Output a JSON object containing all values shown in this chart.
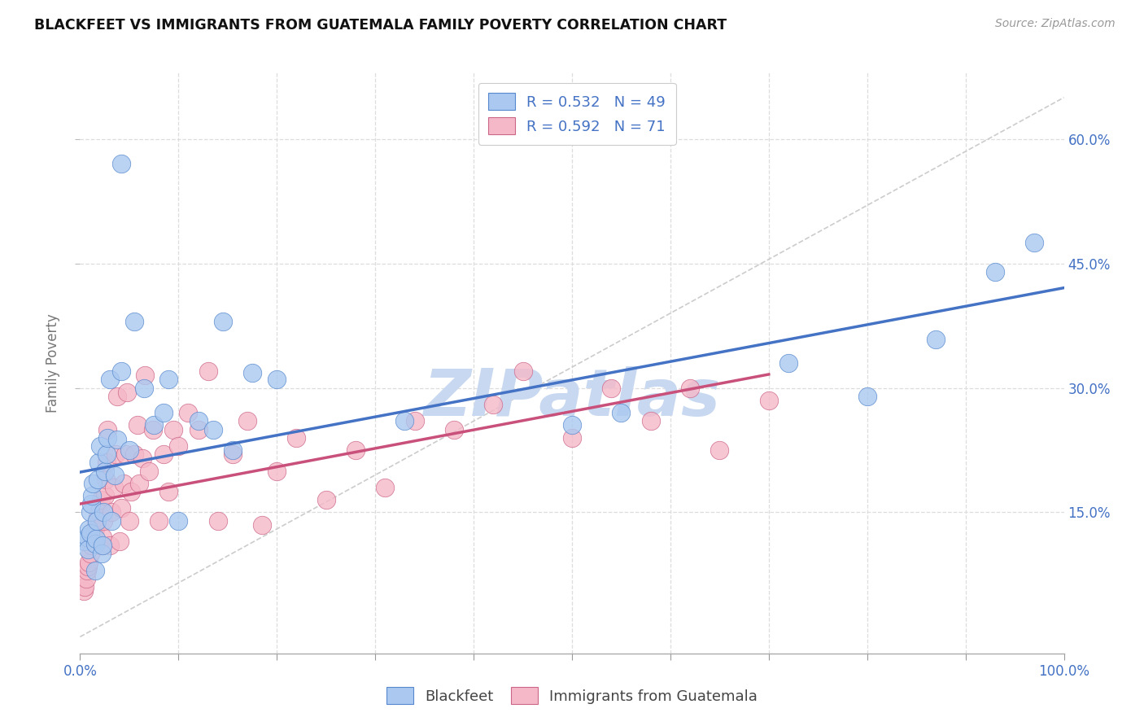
{
  "title": "BLACKFEET VS IMMIGRANTS FROM GUATEMALA FAMILY POVERTY CORRELATION CHART",
  "source": "Source: ZipAtlas.com",
  "ylabel": "Family Poverty",
  "y_tick_labels": [
    "15.0%",
    "30.0%",
    "45.0%",
    "60.0%"
  ],
  "y_tick_values": [
    0.15,
    0.3,
    0.45,
    0.6
  ],
  "x_minor_ticks": [
    0.1,
    0.2,
    0.3,
    0.4,
    0.5,
    0.6,
    0.7,
    0.8,
    0.9
  ],
  "xlim": [
    0.0,
    1.0
  ],
  "ylim": [
    -0.02,
    0.68
  ],
  "legend_label1": "Blackfeet",
  "legend_label2": "Immigrants from Guatemala",
  "R1": 0.532,
  "N1": 49,
  "R2": 0.592,
  "N2": 71,
  "color1": "#aac8f0",
  "color2": "#f5b8c8",
  "color1_edge": "#5588cc",
  "color2_edge": "#cc6688",
  "trendline_color1": "#4472c4",
  "trendline_color2": "#c8507a",
  "diagonal_color": "#cccccc",
  "watermark_color": "#c8d8f0",
  "background_color": "#ffffff",
  "grid_color": "#dddddd",
  "title_color": "#111111",
  "source_color": "#999999",
  "axis_label_color": "#4472c4",
  "ylabel_color": "#777777",
  "scatter1_x": [
    0.005,
    0.007,
    0.008,
    0.009,
    0.01,
    0.01,
    0.011,
    0.012,
    0.013,
    0.015,
    0.015,
    0.016,
    0.017,
    0.018,
    0.019,
    0.02,
    0.022,
    0.023,
    0.024,
    0.025,
    0.027,
    0.028,
    0.03,
    0.032,
    0.035,
    0.038,
    0.042,
    0.05,
    0.055,
    0.065,
    0.075,
    0.085,
    0.09,
    0.1,
    0.12,
    0.135,
    0.145,
    0.155,
    0.175,
    0.2,
    0.33,
    0.5,
    0.55,
    0.72,
    0.8,
    0.87,
    0.93,
    0.97,
    0.042
  ],
  "scatter1_y": [
    0.115,
    0.12,
    0.105,
    0.13,
    0.125,
    0.15,
    0.16,
    0.17,
    0.185,
    0.08,
    0.112,
    0.118,
    0.14,
    0.19,
    0.21,
    0.23,
    0.1,
    0.11,
    0.15,
    0.2,
    0.22,
    0.24,
    0.31,
    0.14,
    0.195,
    0.238,
    0.32,
    0.225,
    0.38,
    0.3,
    0.255,
    0.27,
    0.31,
    0.14,
    0.26,
    0.25,
    0.38,
    0.225,
    0.318,
    0.31,
    0.26,
    0.255,
    0.27,
    0.33,
    0.29,
    0.358,
    0.44,
    0.475,
    0.57
  ],
  "scatter2_x": [
    0.004,
    0.005,
    0.006,
    0.007,
    0.008,
    0.009,
    0.01,
    0.011,
    0.012,
    0.013,
    0.014,
    0.015,
    0.016,
    0.017,
    0.018,
    0.019,
    0.02,
    0.021,
    0.022,
    0.023,
    0.024,
    0.025,
    0.026,
    0.027,
    0.028,
    0.03,
    0.032,
    0.034,
    0.036,
    0.038,
    0.04,
    0.042,
    0.044,
    0.046,
    0.048,
    0.05,
    0.052,
    0.055,
    0.058,
    0.06,
    0.063,
    0.066,
    0.07,
    0.074,
    0.08,
    0.085,
    0.09,
    0.095,
    0.1,
    0.11,
    0.12,
    0.13,
    0.14,
    0.155,
    0.17,
    0.185,
    0.2,
    0.22,
    0.25,
    0.28,
    0.31,
    0.34,
    0.38,
    0.42,
    0.45,
    0.5,
    0.54,
    0.58,
    0.62,
    0.65,
    0.7
  ],
  "scatter2_y": [
    0.055,
    0.06,
    0.07,
    0.08,
    0.085,
    0.09,
    0.1,
    0.11,
    0.115,
    0.12,
    0.125,
    0.13,
    0.135,
    0.14,
    0.145,
    0.15,
    0.155,
    0.165,
    0.11,
    0.12,
    0.14,
    0.17,
    0.19,
    0.21,
    0.25,
    0.11,
    0.15,
    0.18,
    0.22,
    0.29,
    0.115,
    0.155,
    0.185,
    0.22,
    0.295,
    0.14,
    0.175,
    0.22,
    0.255,
    0.185,
    0.215,
    0.315,
    0.2,
    0.25,
    0.14,
    0.22,
    0.175,
    0.25,
    0.23,
    0.27,
    0.25,
    0.32,
    0.14,
    0.22,
    0.26,
    0.135,
    0.2,
    0.24,
    0.165,
    0.225,
    0.18,
    0.26,
    0.25,
    0.28,
    0.32,
    0.24,
    0.3,
    0.26,
    0.3,
    0.225,
    0.285
  ]
}
